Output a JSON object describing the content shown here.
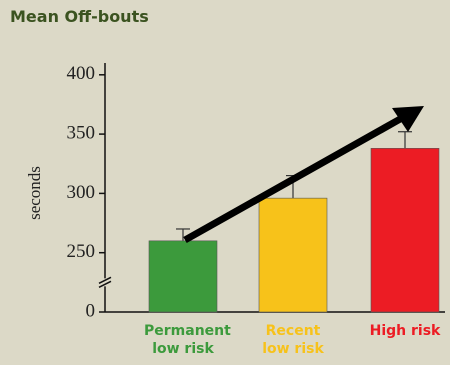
{
  "chart_data": {
    "type": "bar",
    "title": "Mean Off-bouts",
    "y_label": "seconds",
    "categories": [
      "Permanent low risk",
      "Recent low risk",
      "High risk"
    ],
    "values": [
      260,
      296,
      338
    ],
    "errors": [
      10,
      19,
      14
    ],
    "colors": [
      "#3c9a3c",
      "#f7c21a",
      "#ec1c24"
    ],
    "ylim": [
      0,
      410
    ],
    "yticks": [
      0,
      250,
      300,
      350,
      400
    ],
    "axis_break": true
  }
}
